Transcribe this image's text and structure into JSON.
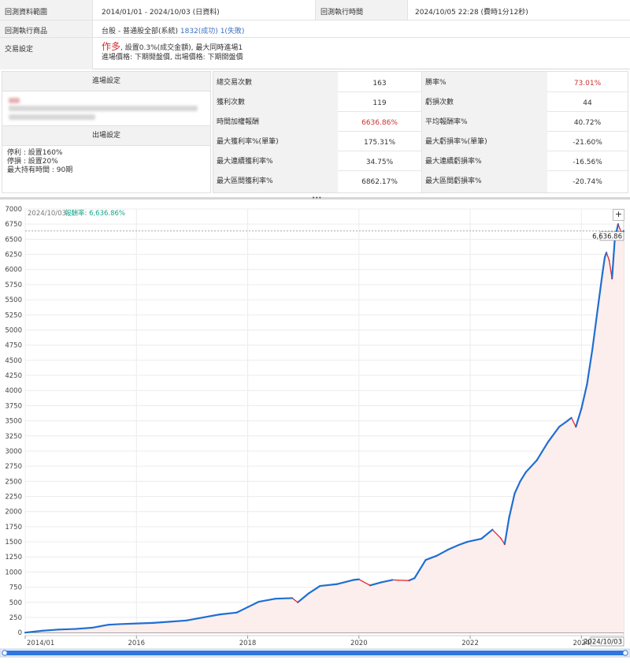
{
  "info": {
    "range_label": "回測資料範圍",
    "range_value": "2014/01/01 - 2024/10/03 (日資料)",
    "exec_time_label": "回測執行時間",
    "exec_time_value": "2024/10/05 22:28 (費時1分12秒)",
    "product_label": "回測執行商品",
    "product_prefix": "台股 - 普通股全部(系統)",
    "product_success": "1832(成功)",
    "product_fail": "1(失敗)",
    "trade_label": "交易設定",
    "trade_direction": "作多",
    "trade_line1": "設置0.3%(成交金額), 最大同時進場1",
    "trade_line2": "進場價格: 下期開盤價, 出場價格: 下期開盤價"
  },
  "settings": {
    "entry_header": "進場設定",
    "exit_header": "出場設定",
    "exit_lines": [
      "停利 : 設置160%",
      "停損 : 設置20%",
      "最大持有時間 : 90期"
    ]
  },
  "stats": {
    "rows": [
      {
        "k1": "總交易次數",
        "v1": "163",
        "k2": "勝率%",
        "v2": "73.01%",
        "v2_red": true
      },
      {
        "k1": "獲利次數",
        "v1": "119",
        "k2": "虧損次數",
        "v2": "44"
      },
      {
        "k1": "時間加權報酬",
        "v1": "6636.86%",
        "v1_red": true,
        "k2": "平均報酬率%",
        "v2": "40.72%"
      },
      {
        "k1": "最大獲利率%(單筆)",
        "v1": "175.31%",
        "k2": "最大虧損率%(單筆)",
        "v2": "-21.60%"
      },
      {
        "k1": "最大連續獲利率%",
        "v1": "34.75%",
        "k2": "最大連續虧損率%",
        "v2": "-16.56%"
      },
      {
        "k1": "最大區間獲利率%",
        "v1": "6862.17%",
        "k2": "最大區間虧損率%",
        "v2": "-20.74%"
      }
    ]
  },
  "chart_legend": {
    "date": "2024/10/03",
    "label": "報酬率: 6,636.86%",
    "last_value_tag": "6,636.86",
    "crosshair_date": "2024/10/03"
  },
  "colors": {
    "up": "#1f6fd1",
    "down": "#e0262b",
    "area": "#fdeeee",
    "legend": "#1aa58a",
    "accent_red": "#d0302e",
    "link_blue": "#3b6fc6"
  },
  "icons": {
    "zoom": "plus-icon"
  },
  "chart_data": {
    "type": "line",
    "title": "",
    "xlabel": "",
    "ylabel": "",
    "ylim": [
      -50,
      7000
    ],
    "y_ticks": [
      0,
      250,
      500,
      750,
      1000,
      1250,
      1500,
      1750,
      2000,
      2250,
      2500,
      2750,
      3000,
      3250,
      3500,
      3750,
      4000,
      4250,
      4500,
      4750,
      5000,
      5250,
      5500,
      5750,
      6000,
      6250,
      6500,
      6750,
      7000
    ],
    "x_ticks": [
      "2014/01",
      "2016",
      "2018",
      "2020",
      "2022",
      "2024"
    ],
    "x_tick_years": [
      2014.0,
      2016.0,
      2018.0,
      2020.0,
      2022.0,
      2024.0
    ],
    "xlim": [
      2014.0,
      2024.76
    ],
    "series": [
      {
        "name": "報酬率",
        "x": [
          2014.0,
          2014.3,
          2014.6,
          2014.9,
          2015.2,
          2015.5,
          2015.7,
          2016.0,
          2016.3,
          2016.6,
          2016.9,
          2017.2,
          2017.5,
          2017.8,
          2018.0,
          2018.2,
          2018.5,
          2018.8,
          2018.9,
          2019.1,
          2019.3,
          2019.6,
          2019.9,
          2020.0,
          2020.2,
          2020.4,
          2020.6,
          2020.9,
          2021.0,
          2021.2,
          2021.4,
          2021.6,
          2021.8,
          2021.95,
          2022.2,
          2022.4,
          2022.55,
          2022.62,
          2022.7,
          2022.8,
          2022.9,
          2023.0,
          2023.2,
          2023.4,
          2023.6,
          2023.75,
          2023.82,
          2023.9,
          2024.0,
          2024.1,
          2024.2,
          2024.3,
          2024.38,
          2024.42,
          2024.45,
          2024.5,
          2024.55,
          2024.6,
          2024.66,
          2024.72,
          2024.76
        ],
        "y": [
          0,
          30,
          50,
          60,
          80,
          130,
          140,
          150,
          160,
          180,
          200,
          250,
          300,
          330,
          420,
          510,
          560,
          570,
          500,
          650,
          770,
          800,
          870,
          880,
          780,
          830,
          870,
          860,
          900,
          1200,
          1270,
          1370,
          1450,
          1500,
          1550,
          1700,
          1560,
          1460,
          1900,
          2300,
          2500,
          2650,
          2850,
          3150,
          3400,
          3500,
          3550,
          3400,
          3700,
          4100,
          4700,
          5400,
          5950,
          6200,
          6280,
          6150,
          5850,
          6500,
          6750,
          6600,
          6636.86
        ]
      }
    ]
  }
}
